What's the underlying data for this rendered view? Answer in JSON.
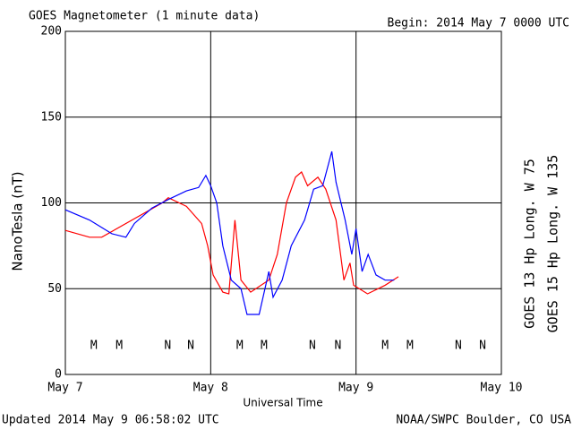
{
  "chart_data": {
    "type": "line",
    "title": "GOES Magnetometer (1 minute data)",
    "subtitle": "Begin:  2014 May 7 0000 UTC",
    "ylabel": "NanoTesla (nT)",
    "xlabel": "Universal Time",
    "footer_left": "Updated 2014 May  9 06:58:02 UTC",
    "footer_right": "NOAA/SWPC Boulder, CO USA",
    "xlim": [
      0,
      72
    ],
    "ylim": [
      0,
      200
    ],
    "xticks": [
      {
        "value": 0,
        "label": "May 7"
      },
      {
        "value": 24,
        "label": "May 8"
      },
      {
        "value": 48,
        "label": "May 9"
      },
      {
        "value": 72,
        "label": "May 10"
      }
    ],
    "yticks": [
      0,
      50,
      100,
      150,
      200
    ],
    "grid": true,
    "series": [
      {
        "name": "GOES 13 Hp  Long. W 75",
        "color": "#ff0000",
        "x": [
          0,
          4,
          6,
          16,
          17,
          20,
          22.5,
          23.5,
          24.4,
          26,
          27,
          28,
          29,
          30.6,
          33.6,
          35,
          36.5,
          38,
          39,
          40,
          41.7,
          43,
          44.7,
          46,
          47,
          47.6,
          49.9,
          52.8,
          55
        ],
        "values": [
          84,
          80,
          80,
          100,
          103,
          98,
          88,
          75,
          58,
          48,
          47,
          90,
          55,
          48,
          55,
          70,
          100,
          115,
          118,
          110,
          115,
          108,
          90,
          55,
          65,
          52,
          47,
          52,
          57
        ]
      },
      {
        "name": "GOES 15 Hp  Long. W 135",
        "color": "#0000ff",
        "x": [
          0,
          4,
          7.7,
          10,
          11.4,
          14.3,
          17,
          20,
          22,
          23.2,
          24,
          25,
          26,
          27.4,
          29,
          30,
          32,
          33.6,
          34.3,
          35.8,
          37.3,
          39.5,
          41,
          42.5,
          44,
          44.7,
          46.2,
          47.3,
          48,
          49,
          50,
          51.3,
          52.8,
          54.3
        ],
        "values": [
          96,
          90,
          82,
          80,
          88,
          97,
          102,
          107,
          109,
          116,
          110,
          100,
          75,
          55,
          50,
          35,
          35,
          60,
          45,
          55,
          75,
          90,
          108,
          110,
          130,
          112,
          90,
          70,
          85,
          60,
          70,
          58,
          55,
          55
        ]
      }
    ],
    "annotations": [
      {
        "text": "M",
        "x": 4.7,
        "color": "#ff0000"
      },
      {
        "text": "M",
        "x": 8.9,
        "color": "#0000ff"
      },
      {
        "text": "N",
        "x": 16.9,
        "color": "#ff0000"
      },
      {
        "text": "N",
        "x": 20.7,
        "color": "#0000ff"
      },
      {
        "text": "M",
        "x": 28.8,
        "color": "#ff0000"
      },
      {
        "text": "M",
        "x": 32.8,
        "color": "#0000ff"
      },
      {
        "text": "N",
        "x": 40.8,
        "color": "#ff0000"
      },
      {
        "text": "N",
        "x": 45.0,
        "color": "#0000ff"
      },
      {
        "text": "M",
        "x": 52.8,
        "color": "#ff0000"
      },
      {
        "text": "M",
        "x": 56.9,
        "color": "#0000ff"
      },
      {
        "text": "N",
        "x": 64.9,
        "color": "#ff0000"
      },
      {
        "text": "N",
        "x": 68.9,
        "color": "#0000ff"
      }
    ]
  }
}
